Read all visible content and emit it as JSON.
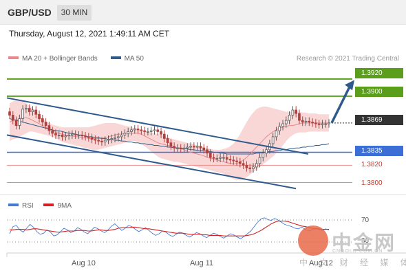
{
  "header": {
    "symbol": "GBP/USD",
    "timeframe": "30 MIN"
  },
  "datetime": "Thursday, August 12, 2021 1:49:11 AM CET",
  "legend": {
    "ma20_label": "MA 20 + Bollinger Bands",
    "ma50_label": "MA 50",
    "credit": "Research © 2021 Trading Central"
  },
  "rsi_legend": {
    "rsi_label": "RSI",
    "ma_label": "9MA",
    "level_70": "70",
    "level_30": "30"
  },
  "watermark": {
    "text": "中金网",
    "url": "CNGOLD.COM.CN",
    "sub": "中 文 财 经 媒 体"
  },
  "colors": {
    "up_candle": "#5a5a5a",
    "down_candle": "#b0413e",
    "bollinger": "#f7c9c9",
    "ma20": "#e8898a",
    "ma50": "#2f5b8c",
    "resistance": "#5a9e1b",
    "support_blue": "#3b6fd6",
    "support_red": "#e98b8b",
    "rsi": "#4a78d0",
    "rsi_ma": "#d42020"
  },
  "chart_data": {
    "type": "candlestick",
    "x_tick_labels": [
      "Aug 10",
      "Aug 11",
      "Aug 12"
    ],
    "y_range": [
      1.379,
      1.3935
    ],
    "current_price": 1.3869,
    "levels": [
      {
        "value": 1.392,
        "label": "1.3920",
        "kind": "resistance"
      },
      {
        "value": 1.39,
        "label": "1.3900",
        "kind": "resistance"
      },
      {
        "value": 1.3869,
        "label": "1.3869",
        "kind": "last"
      },
      {
        "value": 1.3835,
        "label": "1.3835",
        "kind": "pivot"
      },
      {
        "value": 1.382,
        "label": "1.3820",
        "kind": "support"
      },
      {
        "value": 1.38,
        "label": "1.3800",
        "kind": "support"
      }
    ],
    "channel": {
      "upper": [
        1.3898,
        1.3833
      ],
      "lower": [
        1.3855,
        1.3793
      ]
    },
    "forecast": {
      "from": 1.3869,
      "to": 1.3918
    },
    "close": [
      1.3878,
      1.3872,
      1.3866,
      1.3874,
      1.3885,
      1.3886,
      1.3882,
      1.3884,
      1.3879,
      1.3874,
      1.387,
      1.3866,
      1.386,
      1.3857,
      1.3855,
      1.3855,
      1.3853,
      1.3854,
      1.3855,
      1.3856,
      1.3855,
      1.3855,
      1.3854,
      1.3853,
      1.3852,
      1.385,
      1.3849,
      1.3848,
      1.3847,
      1.3849,
      1.385,
      1.3851,
      1.3852,
      1.3853,
      1.3855,
      1.3857,
      1.3859,
      1.3861,
      1.3862,
      1.3861,
      1.386,
      1.3859,
      1.3859,
      1.386,
      1.3861,
      1.3859,
      1.3856,
      1.3851,
      1.3846,
      1.3842,
      1.384,
      1.384,
      1.3839,
      1.384,
      1.3841,
      1.3842,
      1.3841,
      1.3842,
      1.384,
      1.3838,
      1.3834,
      1.3829,
      1.3828,
      1.3828,
      1.3829,
      1.3829,
      1.3827,
      1.3826,
      1.3825,
      1.3824,
      1.3822,
      1.382,
      1.3817,
      1.3816,
      1.3818,
      1.3822,
      1.3829,
      1.3834,
      1.3838,
      1.3845,
      1.3853,
      1.386,
      1.3865,
      1.3868,
      1.3872,
      1.3878,
      1.3884,
      1.388,
      1.3872,
      1.387,
      1.3871,
      1.387,
      1.3869,
      1.3868,
      1.3867,
      1.3868,
      1.3868,
      1.3869
    ],
    "ma20": [
      1.387,
      1.3872,
      1.3873,
      1.3874,
      1.3875,
      1.3875,
      1.3874,
      1.3872,
      1.387,
      1.3868,
      1.3866,
      1.3864,
      1.3862,
      1.386,
      1.3858,
      1.3857,
      1.3856,
      1.3855,
      1.3854,
      1.3854,
      1.3853,
      1.3853,
      1.3852,
      1.3852,
      1.3851,
      1.3851,
      1.3851,
      1.3851,
      1.3851,
      1.3852,
      1.3853,
      1.3854,
      1.3855,
      1.3856,
      1.3856,
      1.3857,
      1.3857,
      1.3857,
      1.3857,
      1.3857,
      1.3856,
      1.3854,
      1.3852,
      1.385,
      1.3848,
      1.3846,
      1.3845,
      1.3844,
      1.3843,
      1.3842,
      1.3841,
      1.384,
      1.3839,
      1.3838,
      1.3836,
      1.3835,
      1.3834,
      1.3833,
      1.3832,
      1.3831,
      1.3829,
      1.3828,
      1.3827,
      1.3826,
      1.3825,
      1.3824,
      1.3823,
      1.3822,
      1.3822,
      1.3822,
      1.3824,
      1.3826,
      1.3829,
      1.3833,
      1.3837,
      1.3841,
      1.3845,
      1.3849,
      1.3853,
      1.3856,
      1.3859,
      1.3861,
      1.3863,
      1.3864,
      1.3865,
      1.3866,
      1.3866,
      1.3867,
      1.3868,
      1.3869,
      1.3869,
      1.3869,
      1.3869,
      1.3869,
      1.3869,
      1.3869,
      1.3869,
      1.3869
    ],
    "bb_upper": [
      1.3892,
      1.3894,
      1.3895,
      1.3895,
      1.3894,
      1.3892,
      1.3889,
      1.3886,
      1.3882,
      1.3878,
      1.3874,
      1.3871,
      1.3869,
      1.3867,
      1.3866,
      1.3865,
      1.3864,
      1.3864,
      1.3864,
      1.3864,
      1.3864,
      1.3864,
      1.3864,
      1.3864,
      1.3864,
      1.3865,
      1.3866,
      1.3867,
      1.3868,
      1.3869,
      1.3869,
      1.3869,
      1.3869,
      1.3868,
      1.3867,
      1.3866,
      1.3865,
      1.3864,
      1.3863,
      1.3862,
      1.3861,
      1.386,
      1.3859,
      1.3858,
      1.3857,
      1.3856,
      1.3855,
      1.3854,
      1.3852,
      1.3851,
      1.385,
      1.3849,
      1.3848,
      1.3847,
      1.3846,
      1.3845,
      1.3844,
      1.3843,
      1.3842,
      1.3841,
      1.384,
      1.3839,
      1.3838,
      1.3838,
      1.3838,
      1.3839,
      1.384,
      1.3842,
      1.3845,
      1.385,
      1.3856,
      1.3863,
      1.387,
      1.3876,
      1.3881,
      1.3885,
      1.3887,
      1.3888,
      1.3888,
      1.3887,
      1.3886,
      1.3885,
      1.3884,
      1.3883,
      1.3882,
      1.3882,
      1.3882,
      1.3882,
      1.3882,
      1.3881,
      1.3881,
      1.388,
      1.388,
      1.388,
      1.3879,
      1.3879,
      1.3879,
      1.3879
    ],
    "bb_lower": [
      1.3848,
      1.385,
      1.3851,
      1.3853,
      1.3855,
      1.3857,
      1.3859,
      1.3859,
      1.3858,
      1.3857,
      1.3856,
      1.3855,
      1.3854,
      1.3853,
      1.3851,
      1.3849,
      1.3847,
      1.3846,
      1.3845,
      1.3844,
      1.3843,
      1.3842,
      1.3841,
      1.384,
      1.3839,
      1.3838,
      1.3838,
      1.3838,
      1.3839,
      1.384,
      1.3841,
      1.3842,
      1.3843,
      1.3844,
      1.3845,
      1.3846,
      1.3847,
      1.3848,
      1.3848,
      1.3847,
      1.3845,
      1.3842,
      1.3839,
      1.3836,
      1.3833,
      1.383,
      1.3828,
      1.3827,
      1.3826,
      1.3825,
      1.3824,
      1.3824,
      1.3823,
      1.3822,
      1.3821,
      1.382,
      1.3819,
      1.3818,
      1.3817,
      1.3816,
      1.3815,
      1.3814,
      1.3813,
      1.3812,
      1.3811,
      1.381,
      1.3808,
      1.3806,
      1.3804,
      1.3803,
      1.3803,
      1.3804,
      1.3806,
      1.3809,
      1.3812,
      1.3815,
      1.3818,
      1.3821,
      1.3824,
      1.3827,
      1.383,
      1.3834,
      1.3838,
      1.3843,
      1.3848,
      1.3852,
      1.3855,
      1.3857,
      1.3858,
      1.3858,
      1.3858,
      1.3859,
      1.3859,
      1.3859,
      1.3859,
      1.3859,
      1.3859,
      1.3859
    ],
    "ma50": [
      1.3874,
      1.3873,
      1.3872,
      1.3871,
      1.387,
      1.3869,
      1.3868,
      1.3867,
      1.3866,
      1.3865,
      1.3864,
      1.3863,
      1.3862,
      1.3861,
      1.386,
      1.386,
      1.3859,
      1.3858,
      1.3857,
      1.3857,
      1.3856,
      1.3855,
      1.3855,
      1.3854,
      1.3853,
      1.3853,
      1.3852,
      1.3852,
      1.3851,
      1.3851,
      1.385,
      1.385,
      1.3849,
      1.3849,
      1.3848,
      1.3848,
      1.3847,
      1.3847,
      1.3846,
      1.3846,
      1.3845,
      1.3845,
      1.3844,
      1.3844,
      1.3843,
      1.3843,
      1.3842,
      1.3842,
      1.3841,
      1.3841,
      1.384,
      1.384,
      1.384,
      1.3839,
      1.3839,
      1.3838,
      1.3838,
      1.3837,
      1.3837,
      1.3837,
      1.3836,
      1.3836,
      1.3835,
      1.3835,
      1.3834,
      1.3834,
      1.3833,
      1.3833,
      1.3833,
      1.3833,
      1.3833,
      1.3833,
      1.3833,
      1.3833,
      1.3833,
      1.3834,
      1.3834,
      1.3835,
      1.3835,
      1.3836,
      1.3836,
      1.3837,
      1.3837,
      1.3838,
      1.3838,
      1.3839,
      1.3839,
      1.384,
      1.384,
      1.3841,
      1.3841,
      1.3842,
      1.3842,
      1.3843,
      1.3843,
      1.3844,
      1.3844,
      1.3845
    ],
    "rsi": [
      45,
      58,
      60,
      52,
      48,
      55,
      62,
      57,
      49,
      44,
      46,
      52,
      48,
      41,
      43,
      49,
      55,
      52,
      47,
      50,
      56,
      53,
      48,
      45,
      51,
      57,
      54,
      50,
      47,
      52,
      59,
      63,
      57,
      51,
      55,
      60,
      58,
      53,
      49,
      52,
      56,
      51,
      46,
      42,
      45,
      50,
      48,
      43,
      40,
      44,
      48,
      46,
      42,
      39,
      43,
      47,
      45,
      41,
      38,
      42,
      46,
      44,
      40,
      37,
      41,
      45,
      43,
      39,
      36,
      40,
      45,
      50,
      58,
      66,
      72,
      74,
      71,
      69,
      73,
      70,
      66,
      62,
      60,
      58,
      55,
      54,
      57,
      53,
      50,
      52,
      55,
      53,
      51,
      54,
      52
    ],
    "rsi_ma": [
      52,
      52,
      53,
      53,
      53,
      52,
      53,
      54,
      54,
      53,
      52,
      51,
      50,
      49,
      48,
      48,
      49,
      50,
      50,
      50,
      51,
      51,
      51,
      50,
      50,
      51,
      52,
      52,
      51,
      51,
      52,
      53,
      55,
      56,
      56,
      56,
      57,
      57,
      56,
      55,
      54,
      54,
      53,
      52,
      51,
      50,
      49,
      48,
      47,
      46,
      46,
      46,
      45,
      44,
      44,
      44,
      44,
      43,
      43,
      42,
      42,
      42,
      42,
      41,
      41,
      41,
      41,
      41,
      41,
      41,
      42,
      43,
      45,
      48,
      51,
      55,
      59,
      63,
      66,
      68,
      68,
      68,
      67,
      65,
      63,
      61,
      59,
      58,
      57,
      55,
      54,
      54,
      53,
      53,
      53
    ]
  }
}
